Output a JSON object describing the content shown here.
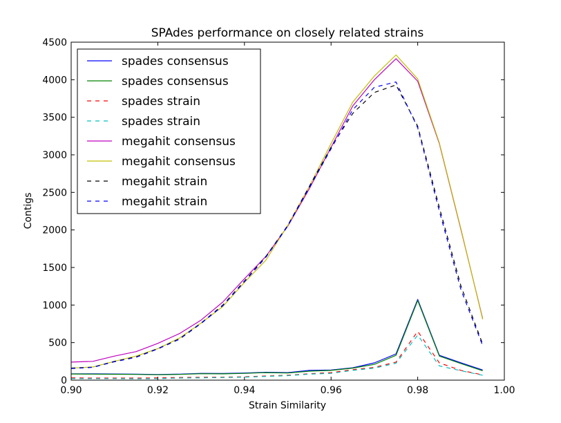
{
  "chart_data": {
    "type": "line",
    "title": "SPAdes performance on closely related strains",
    "xlabel": "Strain Similarity",
    "ylabel": "Contigs",
    "xlim": [
      0.9,
      1.0
    ],
    "ylim": [
      0,
      4500
    ],
    "x_ticks": [
      "0.90",
      "0.92",
      "0.94",
      "0.96",
      "0.98",
      "1.00"
    ],
    "y_ticks": [
      "0",
      "500",
      "1000",
      "1500",
      "2000",
      "2500",
      "3000",
      "3500",
      "4000",
      "4500"
    ],
    "grid": false,
    "legend_position": "top-left",
    "x": [
      0.9,
      0.905,
      0.91,
      0.915,
      0.92,
      0.925,
      0.93,
      0.935,
      0.94,
      0.945,
      0.95,
      0.955,
      0.96,
      0.965,
      0.97,
      0.975,
      0.98,
      0.985,
      0.99,
      0.995
    ],
    "series": [
      {
        "name": "spades consensus",
        "color": "#0000ff",
        "dash": "solid",
        "values": [
          85,
          85,
          82,
          80,
          75,
          80,
          90,
          88,
          95,
          105,
          100,
          130,
          135,
          165,
          230,
          350,
          1075,
          330,
          230,
          135
        ]
      },
      {
        "name": "spades consensus",
        "color": "#008000",
        "dash": "solid",
        "values": [
          82,
          80,
          78,
          76,
          72,
          76,
          86,
          84,
          90,
          100,
          95,
          120,
          130,
          160,
          210,
          330,
          1060,
          320,
          220,
          125
        ]
      },
      {
        "name": "spades strain",
        "color": "#ff0000",
        "dash": "dashed",
        "values": [
          30,
          28,
          28,
          28,
          30,
          35,
          38,
          40,
          45,
          55,
          65,
          85,
          100,
          140,
          170,
          240,
          650,
          230,
          130,
          70
        ]
      },
      {
        "name": "spades strain",
        "color": "#00bfbf",
        "dash": "dashed",
        "values": [
          20,
          20,
          20,
          18,
          20,
          28,
          30,
          35,
          40,
          50,
          60,
          80,
          90,
          130,
          160,
          225,
          600,
          190,
          125,
          65
        ]
      },
      {
        "name": "megahit consensus",
        "color": "#bf00bf",
        "dash": "solid",
        "values": [
          240,
          250,
          320,
          380,
          490,
          620,
          800,
          1040,
          1350,
          1650,
          2050,
          2550,
          3100,
          3650,
          4000,
          4280,
          3980,
          3150,
          2000,
          820
        ]
      },
      {
        "name": "megahit consensus",
        "color": "#bfbf00",
        "dash": "solid",
        "values": [
          160,
          175,
          250,
          320,
          420,
          560,
          760,
          980,
          1300,
          1600,
          2060,
          2580,
          3150,
          3700,
          4050,
          4330,
          4010,
          3160,
          2010,
          810
        ]
      },
      {
        "name": "megahit strain",
        "color": "#000000",
        "dash": "dashed",
        "values": [
          160,
          172,
          250,
          310,
          420,
          550,
          760,
          1000,
          1320,
          1650,
          2060,
          2580,
          3100,
          3550,
          3830,
          3930,
          3380,
          2300,
          1250,
          480
        ]
      },
      {
        "name": "megahit strain",
        "color": "#0000ff",
        "dash": "dashed",
        "values": [
          155,
          170,
          245,
          305,
          415,
          545,
          755,
          990,
          1310,
          1640,
          2050,
          2560,
          3080,
          3600,
          3900,
          3970,
          3360,
          2250,
          1200,
          460
        ]
      }
    ]
  }
}
